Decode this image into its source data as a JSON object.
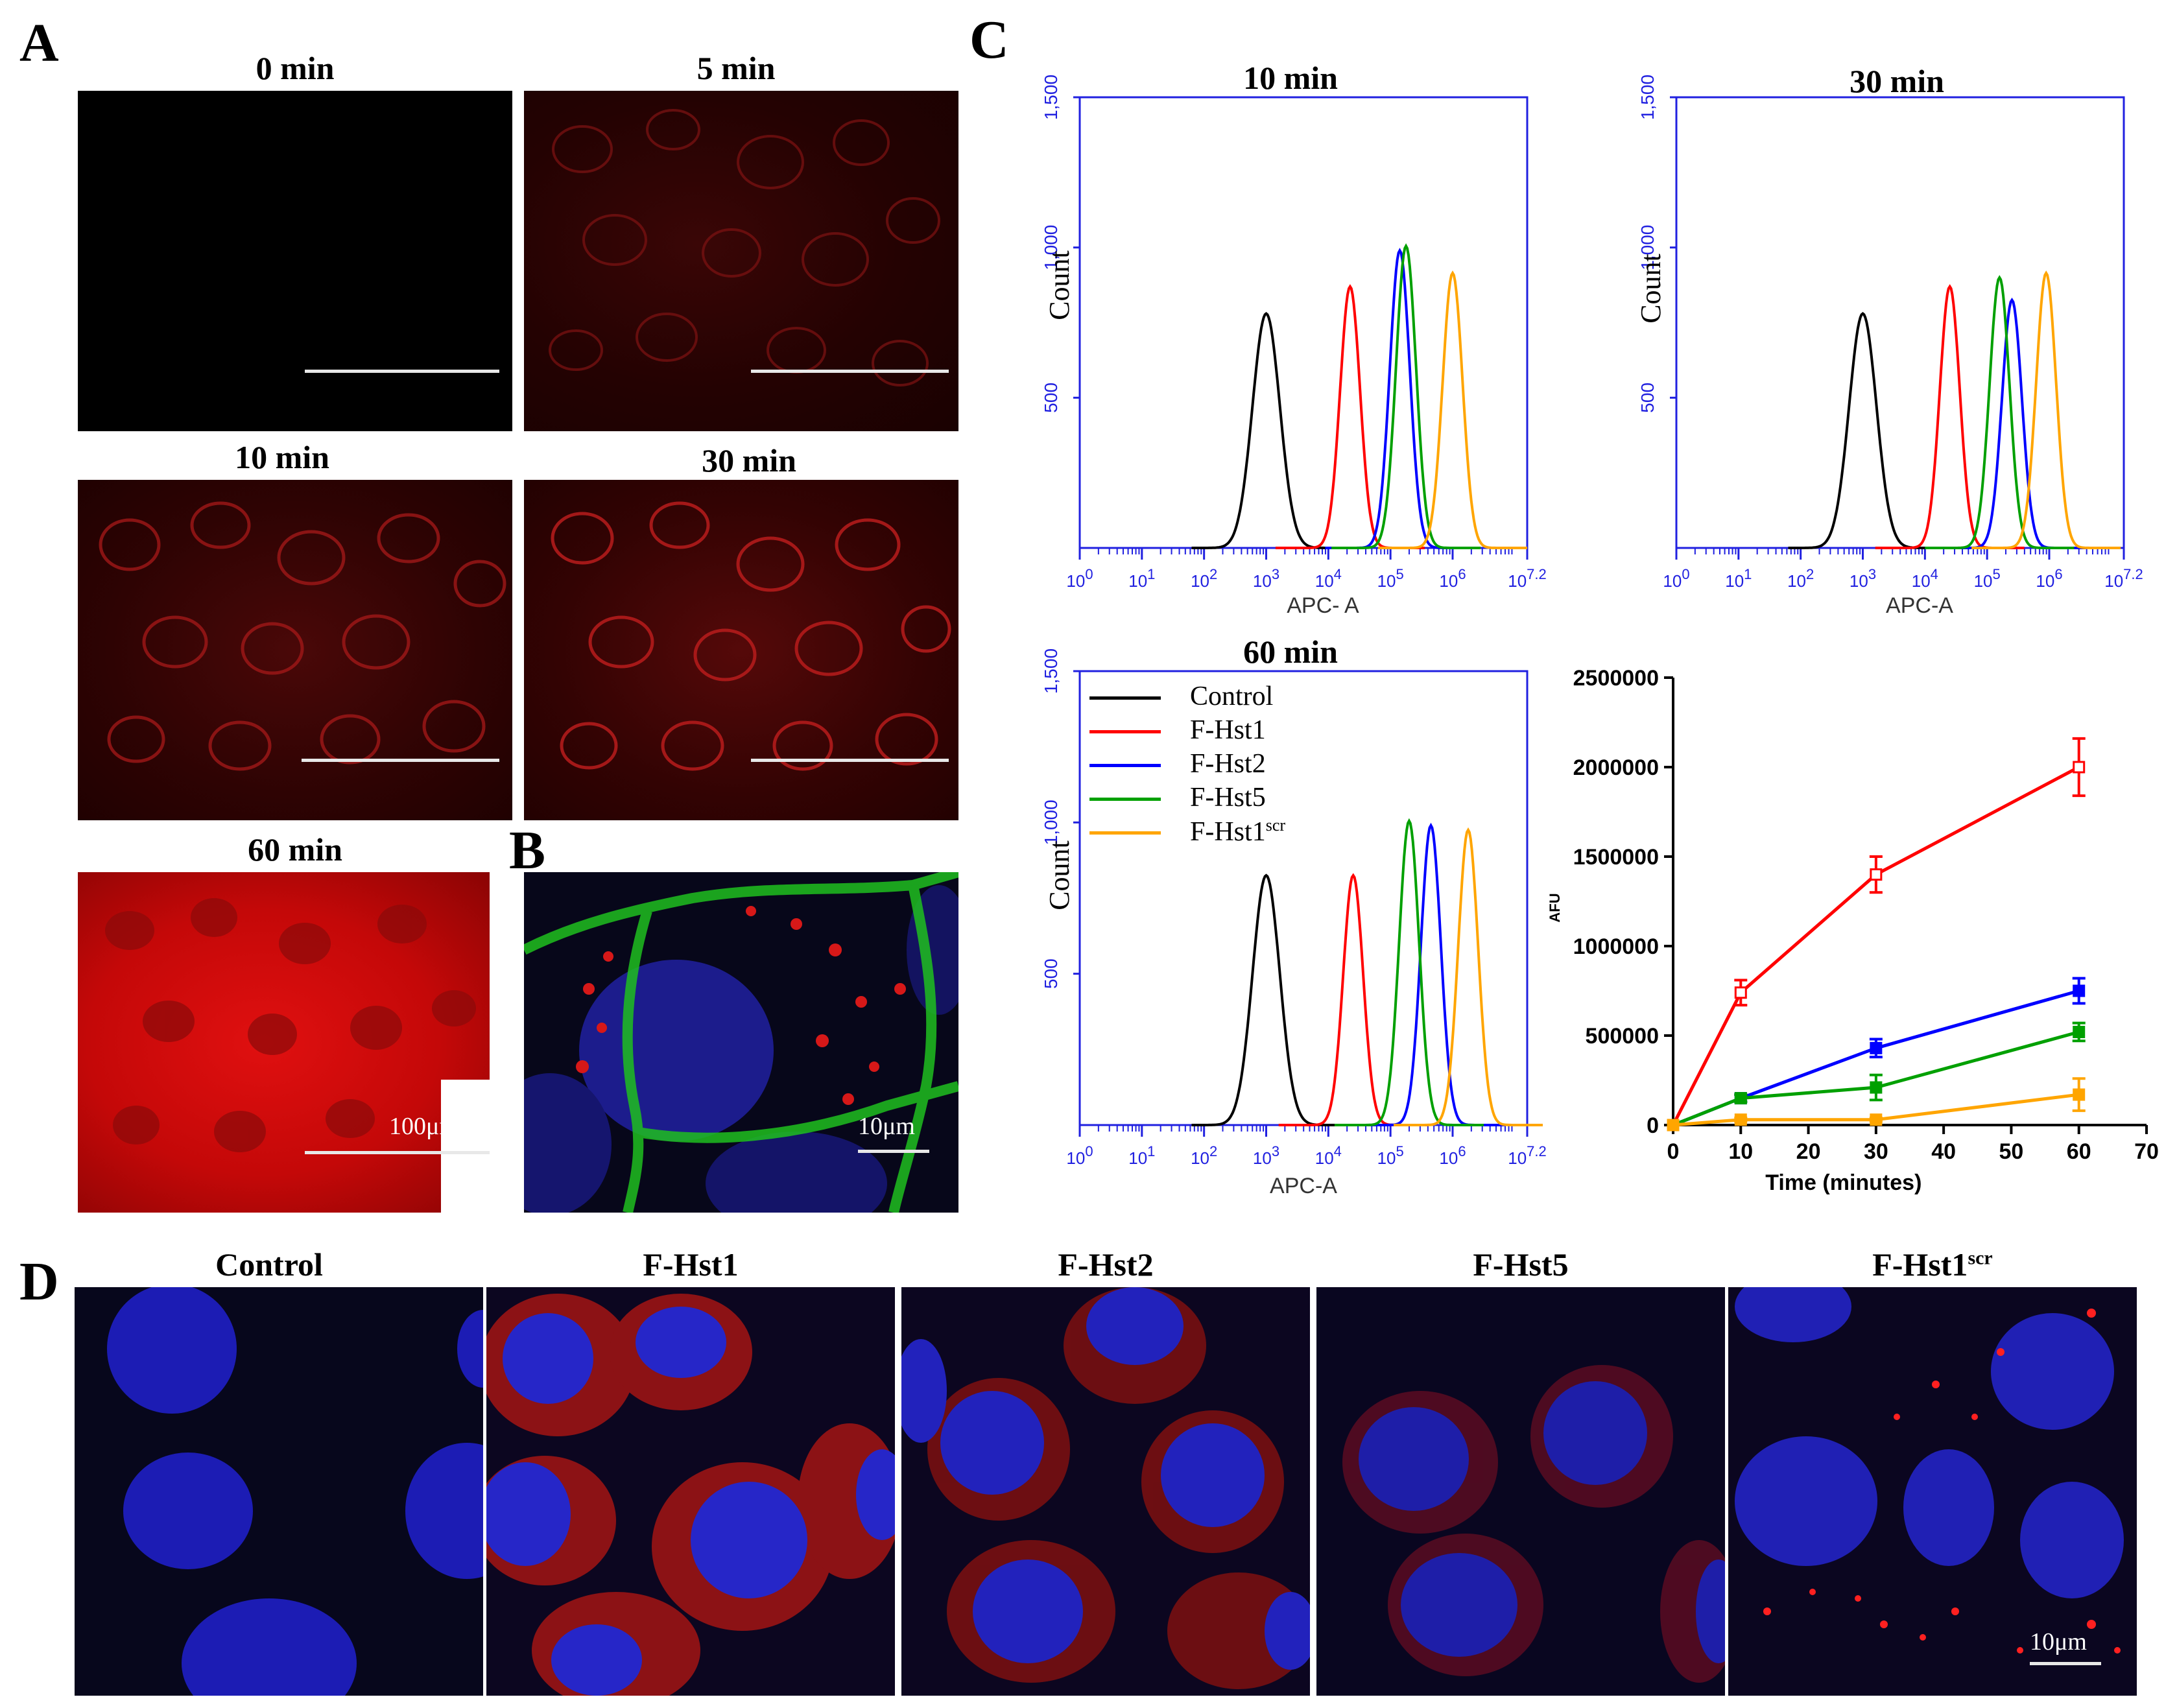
{
  "panels": {
    "A": {
      "letter": "A",
      "titles": [
        "0 min",
        "5 min",
        "10 min",
        "30 min",
        "60 min"
      ],
      "scale_label": "100μm"
    },
    "B": {
      "letter": "B",
      "scale_label": "10μm"
    },
    "C": {
      "letter": "C",
      "hist_titles": [
        "10 min",
        "30 min",
        "60 min"
      ],
      "hist_ylabel": "Count",
      "hist_xlabels": [
        "APC- A",
        "APC-A",
        "APC-A"
      ],
      "hist_yticks": [
        "1,500",
        "1,000",
        "500"
      ],
      "hist_xtick_exponents": [
        "0",
        "1",
        "2",
        "3",
        "4",
        "5",
        "6",
        "7.2"
      ],
      "legend": [
        {
          "name": "Control",
          "color": "#000000"
        },
        {
          "name": "F-Hst1",
          "color": "#ff0000"
        },
        {
          "name": "F-Hst2",
          "color": "#0000ff"
        },
        {
          "name": "F-Hst5",
          "color": "#00a000"
        },
        {
          "name": "F-Hst1",
          "sup": "scr",
          "color": "#ffa500"
        }
      ]
    },
    "D": {
      "letter": "D",
      "titles": [
        "Control",
        "F-Hst1",
        "F-Hst2",
        "F-Hst5",
        "F-Hst1"
      ],
      "last_title_sup": "scr",
      "scale_label": "10μm"
    }
  },
  "chart_data": [
    {
      "type": "line",
      "xlabel": "Time (minutes)",
      "ylabel": "AFU",
      "x": [
        0,
        10,
        30,
        60
      ],
      "xlim": [
        0,
        70
      ],
      "ylim": [
        0,
        2500000
      ],
      "xticks": [
        "0",
        "10",
        "20",
        "30",
        "40",
        "50",
        "60",
        "70"
      ],
      "yticks": [
        "0",
        "500000",
        "1000000",
        "1500000",
        "2000000",
        "2500000"
      ],
      "series": [
        {
          "color": "#ff0000",
          "values": [
            0,
            740000,
            1400000,
            2000000
          ],
          "errors": [
            0,
            70000,
            100000,
            160000
          ]
        },
        {
          "color": "#0000ff",
          "values": [
            0,
            150000,
            430000,
            750000
          ],
          "errors": [
            0,
            20000,
            50000,
            70000
          ]
        },
        {
          "color": "#00a000",
          "values": [
            0,
            150000,
            210000,
            520000
          ],
          "errors": [
            0,
            20000,
            70000,
            50000
          ]
        },
        {
          "color": "#ffa500",
          "values": [
            0,
            30000,
            30000,
            170000
          ],
          "errors": [
            0,
            10000,
            10000,
            90000
          ]
        }
      ]
    }
  ]
}
